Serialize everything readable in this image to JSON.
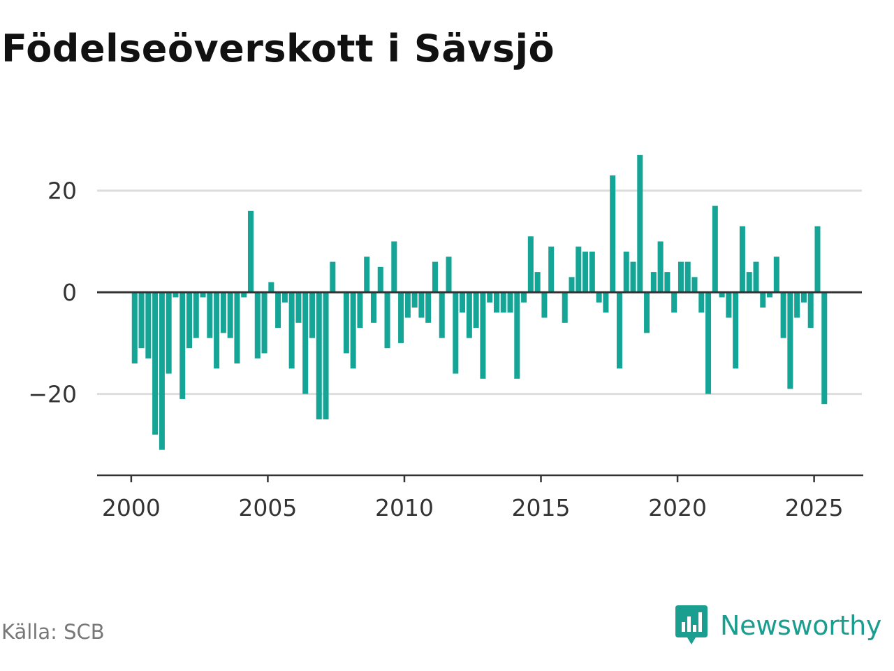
{
  "title": "Födelseöverskott i Sävsjö",
  "source": "Källa: SCB",
  "brand": {
    "name": "Newsworthy",
    "icon": "newsworthy-logo-icon",
    "color": "#1a9e8f"
  },
  "colors": {
    "bar": "#15a597",
    "grid": "#dddddd",
    "zero_line": "#333333",
    "axis": "#333333"
  },
  "chart_data": {
    "type": "bar",
    "title": "Födelseöverskott i Sävsjö",
    "xlabel": "",
    "ylabel": "",
    "grid": true,
    "ylim": [
      -36,
      30
    ],
    "xlim": [
      1998.75,
      2026.8
    ],
    "y_ticks": [
      {
        "value": 20,
        "label": "20"
      },
      {
        "value": 0,
        "label": "0"
      },
      {
        "value": -20,
        "label": "−20"
      }
    ],
    "x_ticks": [
      {
        "value": 2000,
        "label": "2000"
      },
      {
        "value": 2005,
        "label": "2005"
      },
      {
        "value": 2010,
        "label": "2010"
      },
      {
        "value": 2015,
        "label": "2015"
      },
      {
        "value": 2020,
        "label": "2020"
      },
      {
        "value": 2025,
        "label": "2025"
      }
    ],
    "quarters": [
      "2000 Q1",
      "2000 Q2",
      "2000 Q3",
      "2000 Q4",
      "2001 Q1",
      "2001 Q2",
      "2001 Q3",
      "2001 Q4",
      "2002 Q1",
      "2002 Q2",
      "2002 Q3",
      "2002 Q4",
      "2003 Q1",
      "2003 Q2",
      "2003 Q3",
      "2003 Q4",
      "2004 Q1",
      "2004 Q2",
      "2004 Q3",
      "2004 Q4",
      "2005 Q1",
      "2005 Q2",
      "2005 Q3",
      "2005 Q4",
      "2006 Q1",
      "2006 Q2",
      "2006 Q3",
      "2006 Q4",
      "2007 Q1",
      "2007 Q2",
      "2007 Q3",
      "2007 Q4",
      "2008 Q1",
      "2008 Q2",
      "2008 Q3",
      "2008 Q4",
      "2009 Q1",
      "2009 Q2",
      "2009 Q3",
      "2009 Q4",
      "2010 Q1",
      "2010 Q2",
      "2010 Q3",
      "2010 Q4",
      "2011 Q1",
      "2011 Q2",
      "2011 Q3",
      "2011 Q4",
      "2012 Q1",
      "2012 Q2",
      "2012 Q3",
      "2012 Q4",
      "2013 Q1",
      "2013 Q2",
      "2013 Q3",
      "2013 Q4",
      "2014 Q1",
      "2014 Q2",
      "2014 Q3",
      "2014 Q4",
      "2015 Q1",
      "2015 Q2",
      "2015 Q3",
      "2015 Q4",
      "2016 Q1",
      "2016 Q2",
      "2016 Q3",
      "2016 Q4",
      "2017 Q1",
      "2017 Q2",
      "2017 Q3",
      "2017 Q4",
      "2018 Q1",
      "2018 Q2",
      "2018 Q3",
      "2018 Q4",
      "2019 Q1",
      "2019 Q2",
      "2019 Q3",
      "2019 Q4",
      "2020 Q1",
      "2020 Q2",
      "2020 Q3",
      "2020 Q4",
      "2021 Q1",
      "2021 Q2",
      "2021 Q3",
      "2021 Q4",
      "2022 Q1",
      "2022 Q2",
      "2022 Q3",
      "2022 Q4",
      "2023 Q1",
      "2023 Q2",
      "2023 Q3",
      "2023 Q4",
      "2024 Q1",
      "2024 Q2",
      "2024 Q3",
      "2024 Q4",
      "2025 Q1",
      "2025 Q2"
    ],
    "x": [
      2000.125,
      2000.375,
      2000.625,
      2000.875,
      2001.125,
      2001.375,
      2001.625,
      2001.875,
      2002.125,
      2002.375,
      2002.625,
      2002.875,
      2003.125,
      2003.375,
      2003.625,
      2003.875,
      2004.125,
      2004.375,
      2004.625,
      2004.875,
      2005.125,
      2005.375,
      2005.625,
      2005.875,
      2006.125,
      2006.375,
      2006.625,
      2006.875,
      2007.125,
      2007.375,
      2007.625,
      2007.875,
      2008.125,
      2008.375,
      2008.625,
      2008.875,
      2009.125,
      2009.375,
      2009.625,
      2009.875,
      2010.125,
      2010.375,
      2010.625,
      2010.875,
      2011.125,
      2011.375,
      2011.625,
      2011.875,
      2012.125,
      2012.375,
      2012.625,
      2012.875,
      2013.125,
      2013.375,
      2013.625,
      2013.875,
      2014.125,
      2014.375,
      2014.625,
      2014.875,
      2015.125,
      2015.375,
      2015.625,
      2015.875,
      2016.125,
      2016.375,
      2016.625,
      2016.875,
      2017.125,
      2017.375,
      2017.625,
      2017.875,
      2018.125,
      2018.375,
      2018.625,
      2018.875,
      2019.125,
      2019.375,
      2019.625,
      2019.875,
      2020.125,
      2020.375,
      2020.625,
      2020.875,
      2021.125,
      2021.375,
      2021.625,
      2021.875,
      2022.125,
      2022.375,
      2022.625,
      2022.875,
      2023.125,
      2023.375,
      2023.625,
      2023.875,
      2024.125,
      2024.375,
      2024.625,
      2024.875,
      2025.125,
      2025.375
    ],
    "values": [
      -14,
      -11,
      -13,
      -28,
      -31,
      -16,
      -1,
      -21,
      -11,
      -9,
      -1,
      -9,
      -15,
      -8,
      -9,
      -14,
      -1,
      16,
      -13,
      -12,
      2,
      -7,
      -2,
      -15,
      -6,
      -20,
      -9,
      -25,
      -25,
      6,
      0,
      -12,
      -15,
      -7,
      7,
      -6,
      5,
      -11,
      10,
      -10,
      -5,
      -3,
      -5,
      -6,
      6,
      -9,
      7,
      -16,
      -4,
      -9,
      -7,
      -17,
      -2,
      -4,
      -4,
      -4,
      -17,
      -2,
      11,
      4,
      -5,
      9,
      0,
      -6,
      3,
      9,
      8,
      8,
      -2,
      -4,
      23,
      -15,
      8,
      6,
      27,
      -8,
      4,
      10,
      4,
      -4,
      6,
      6,
      3,
      -4,
      -20,
      17,
      -1,
      -5,
      -15,
      13,
      4,
      6,
      -3,
      -1,
      7,
      -9,
      -19,
      -5,
      -2,
      -7,
      13,
      -22
    ]
  }
}
